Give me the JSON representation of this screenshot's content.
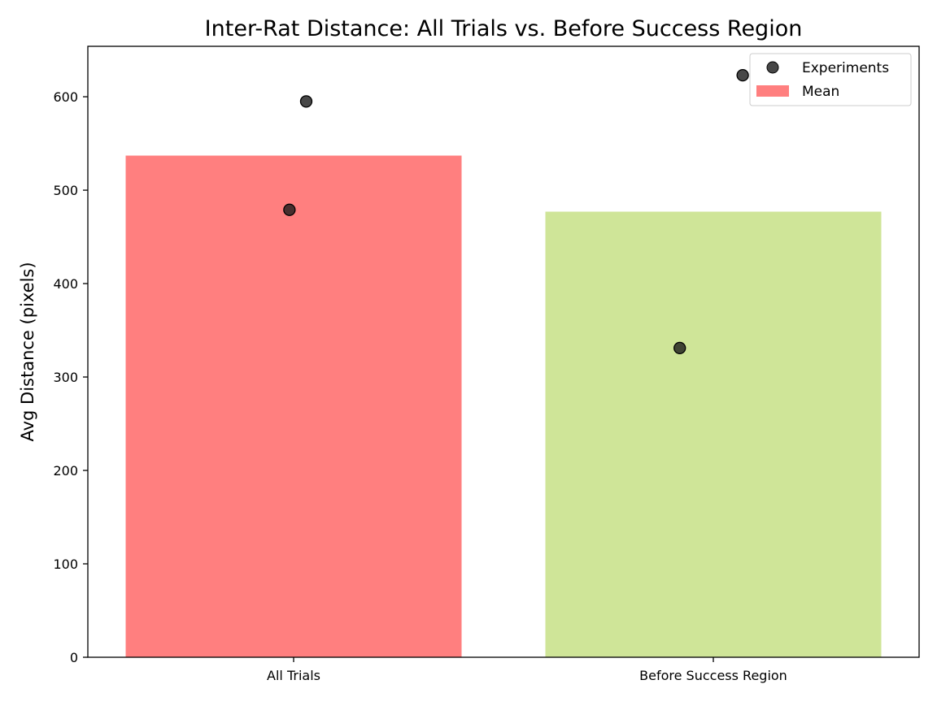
{
  "chart_data": {
    "type": "bar",
    "title": "Inter-Rat Distance: All Trials vs. Before Success Region",
    "xlabel": "",
    "ylabel": "Avg Distance (pixels)",
    "categories": [
      "All Trials",
      "Before Success Region"
    ],
    "values": [
      537,
      477
    ],
    "bar_colors": [
      "#ff7f7f",
      "#cfe598"
    ],
    "ylim": [
      0,
      654
    ],
    "yticks": [
      0,
      100,
      200,
      300,
      400,
      500,
      600
    ],
    "grid": false,
    "experiments": [
      {
        "category": "All Trials",
        "offset": 0.03,
        "value": 595
      },
      {
        "category": "All Trials",
        "offset": -0.01,
        "value": 479
      },
      {
        "category": "Before Success Region",
        "offset": 0.07,
        "value": 623
      },
      {
        "category": "Before Success Region",
        "offset": -0.08,
        "value": 331
      }
    ],
    "legend": {
      "placement": "top-right",
      "entries": [
        {
          "label": "Experiments",
          "kind": "marker",
          "color": "#333333"
        },
        {
          "label": "Mean",
          "kind": "patch",
          "color": "#ff7f7f"
        }
      ]
    }
  }
}
